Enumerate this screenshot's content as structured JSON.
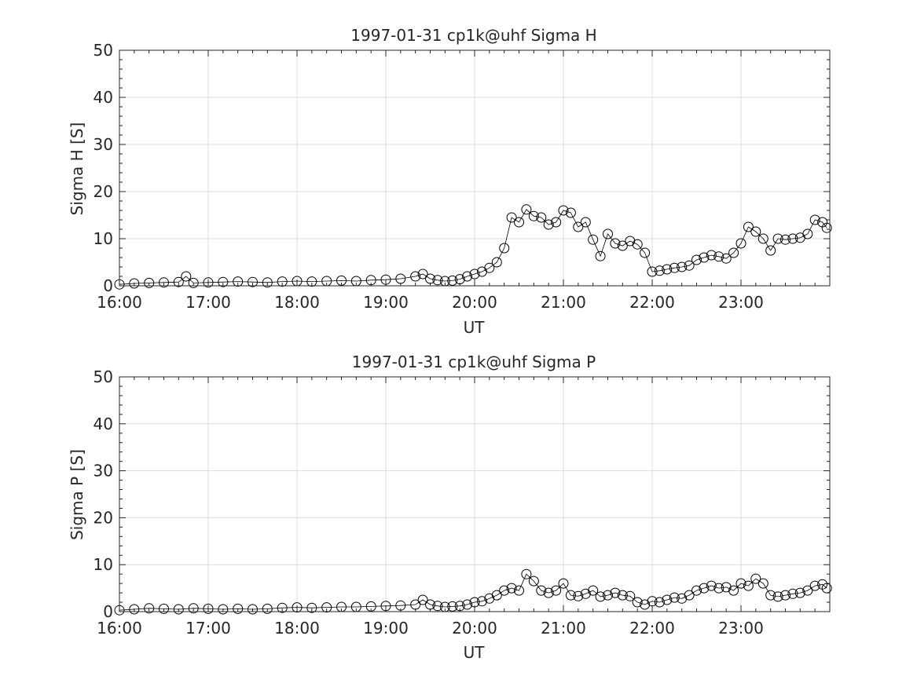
{
  "chart_data": [
    {
      "type": "scatter",
      "title": "1997-01-31  cp1k@uhf Sigma H",
      "xlabel": "UT",
      "ylabel": "Sigma H [S]",
      "xlim": [
        "16:00",
        "24:00"
      ],
      "ylim": [
        0,
        50
      ],
      "xticks": [
        "16:00",
        "17:00",
        "18:00",
        "19:00",
        "20:00",
        "21:00",
        "22:00",
        "23:00"
      ],
      "yticks": [
        "0",
        "10",
        "20",
        "30",
        "40",
        "50"
      ],
      "grid": true,
      "marker": "open-circle",
      "color": "#000000",
      "series": [
        {
          "x": [
            "16:00",
            "16:10",
            "16:20",
            "16:30",
            "16:40",
            "16:45",
            "16:50",
            "17:00",
            "17:10",
            "17:20",
            "17:30",
            "17:40",
            "17:50",
            "18:00",
            "18:10",
            "18:20",
            "18:30",
            "18:40",
            "18:50",
            "19:00",
            "19:10",
            "19:20",
            "19:25",
            "19:30",
            "19:35",
            "19:40",
            "19:45",
            "19:50",
            "19:55",
            "20:00",
            "20:05",
            "20:10",
            "20:15",
            "20:20",
            "20:25",
            "20:30",
            "20:35",
            "20:40",
            "20:45",
            "20:50",
            "20:55",
            "21:00",
            "21:05",
            "21:10",
            "21:15",
            "21:20",
            "21:25",
            "21:30",
            "21:35",
            "21:40",
            "21:45",
            "21:50",
            "21:55",
            "22:00",
            "22:05",
            "22:10",
            "22:15",
            "22:20",
            "22:25",
            "22:30",
            "22:35",
            "22:40",
            "22:45",
            "22:50",
            "22:55",
            "23:00",
            "23:05",
            "23:10",
            "23:15",
            "23:20",
            "23:25",
            "23:30",
            "23:35",
            "23:40",
            "23:45",
            "23:50",
            "23:55",
            "23:58"
          ],
          "y": [
            0.3,
            0.5,
            0.6,
            0.7,
            0.8,
            2.0,
            0.6,
            0.7,
            0.8,
            0.9,
            0.8,
            0.7,
            0.9,
            1.0,
            0.9,
            1.0,
            1.1,
            1.0,
            1.2,
            1.3,
            1.5,
            2.0,
            2.5,
            1.5,
            1.2,
            1.0,
            1.1,
            1.4,
            2.0,
            2.5,
            3.0,
            3.8,
            5.0,
            8.0,
            14.5,
            13.5,
            16.2,
            14.8,
            14.5,
            13.0,
            13.5,
            16.0,
            15.5,
            12.5,
            13.5,
            9.8,
            6.3,
            11.0,
            9.0,
            8.5,
            9.5,
            8.8,
            7.0,
            3.0,
            3.2,
            3.5,
            3.8,
            4.0,
            4.3,
            5.5,
            6.0,
            6.5,
            6.2,
            5.8,
            7.0,
            9.0,
            12.5,
            11.5,
            10.0,
            7.5,
            10.0,
            9.8,
            10.0,
            10.2,
            11.0,
            14.0,
            13.5,
            12.3
          ]
        }
      ]
    },
    {
      "type": "scatter",
      "title": "1997-01-31  cp1k@uhf Sigma P",
      "xlabel": "UT",
      "ylabel": "Sigma P [S]",
      "xlim": [
        "16:00",
        "24:00"
      ],
      "ylim": [
        0,
        50
      ],
      "xticks": [
        "16:00",
        "17:00",
        "18:00",
        "19:00",
        "20:00",
        "21:00",
        "22:00",
        "23:00"
      ],
      "yticks": [
        "0",
        "10",
        "20",
        "30",
        "40",
        "50"
      ],
      "grid": true,
      "marker": "open-circle",
      "color": "#000000",
      "series": [
        {
          "x": [
            "16:00",
            "16:10",
            "16:20",
            "16:30",
            "16:40",
            "16:50",
            "17:00",
            "17:10",
            "17:20",
            "17:30",
            "17:40",
            "17:50",
            "18:00",
            "18:10",
            "18:20",
            "18:30",
            "18:40",
            "18:50",
            "19:00",
            "19:10",
            "19:20",
            "19:25",
            "19:30",
            "19:35",
            "19:40",
            "19:45",
            "19:50",
            "19:55",
            "20:00",
            "20:05",
            "20:10",
            "20:15",
            "20:20",
            "20:25",
            "20:30",
            "20:35",
            "20:40",
            "20:45",
            "20:50",
            "20:55",
            "21:00",
            "21:05",
            "21:10",
            "21:15",
            "21:20",
            "21:25",
            "21:30",
            "21:35",
            "21:40",
            "21:45",
            "21:50",
            "21:55",
            "22:00",
            "22:05",
            "22:10",
            "22:15",
            "22:20",
            "22:25",
            "22:30",
            "22:35",
            "22:40",
            "22:45",
            "22:50",
            "22:55",
            "23:00",
            "23:05",
            "23:10",
            "23:15",
            "23:20",
            "23:25",
            "23:30",
            "23:35",
            "23:40",
            "23:45",
            "23:50",
            "23:55",
            "23:58"
          ],
          "y": [
            0.3,
            0.5,
            0.7,
            0.6,
            0.5,
            0.7,
            0.6,
            0.5,
            0.6,
            0.5,
            0.6,
            0.8,
            0.9,
            0.8,
            0.9,
            1.0,
            1.0,
            1.1,
            1.2,
            1.3,
            1.5,
            2.5,
            1.5,
            1.2,
            1.0,
            1.1,
            1.2,
            1.5,
            2.0,
            2.2,
            2.8,
            3.5,
            4.5,
            5.0,
            4.5,
            8.0,
            6.5,
            4.5,
            4.0,
            4.5,
            6.0,
            3.5,
            3.3,
            3.8,
            4.5,
            3.2,
            3.5,
            4.0,
            3.5,
            3.3,
            2.0,
            1.5,
            2.2,
            2.0,
            2.5,
            3.0,
            2.8,
            3.5,
            4.5,
            5.0,
            5.5,
            5.0,
            5.2,
            4.5,
            6.0,
            5.5,
            7.0,
            6.0,
            3.5,
            3.2,
            3.5,
            3.8,
            4.0,
            4.5,
            5.5,
            5.8,
            5.0
          ]
        }
      ]
    }
  ]
}
